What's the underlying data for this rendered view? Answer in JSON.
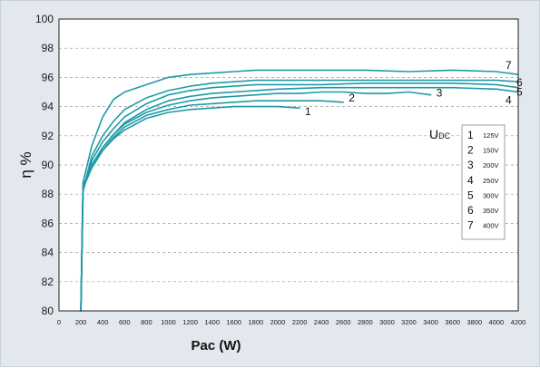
{
  "chart_data": {
    "type": "line",
    "xlabel": "Pac (W)",
    "ylabel": "η %",
    "xlim": [
      0,
      4200
    ],
    "ylim": [
      80,
      100
    ],
    "x_ticks": [
      0,
      200,
      400,
      600,
      800,
      1000,
      1200,
      1400,
      1600,
      1800,
      2000,
      2200,
      2400,
      2600,
      2800,
      3000,
      3200,
      3400,
      3600,
      3800,
      4000,
      4200
    ],
    "y_ticks": [
      80,
      82,
      84,
      86,
      88,
      90,
      92,
      94,
      96,
      98,
      100
    ],
    "grid": "horizontal dashed",
    "line_color": "#1e9aa6",
    "legend": {
      "title_main": "U",
      "title_sub": "DC",
      "position": "right",
      "entries": [
        {
          "id": "1",
          "label": "125V"
        },
        {
          "id": "2",
          "label": "150V"
        },
        {
          "id": "3",
          "label": "200V"
        },
        {
          "id": "4",
          "label": "250V"
        },
        {
          "id": "5",
          "label": "300V"
        },
        {
          "id": "6",
          "label": "350V"
        },
        {
          "id": "7",
          "label": "400V"
        }
      ]
    },
    "series": [
      {
        "name": "1",
        "x": [
          200,
          220,
          300,
          400,
          500,
          600,
          800,
          1000,
          1200,
          1400,
          1600,
          1800,
          2000,
          2200
        ],
        "y": [
          80.0,
          88.6,
          89.8,
          91.0,
          91.8,
          92.4,
          93.2,
          93.6,
          93.8,
          93.9,
          94.0,
          94.0,
          94.0,
          93.9
        ]
      },
      {
        "name": "2",
        "x": [
          200,
          220,
          300,
          400,
          500,
          600,
          800,
          1000,
          1200,
          1400,
          1600,
          1800,
          2000,
          2200,
          2400,
          2600
        ],
        "y": [
          80.0,
          88.4,
          89.8,
          91.0,
          91.9,
          92.6,
          93.4,
          93.8,
          94.1,
          94.2,
          94.3,
          94.4,
          94.4,
          94.4,
          94.4,
          94.3
        ]
      },
      {
        "name": "3",
        "x": [
          200,
          220,
          300,
          400,
          500,
          600,
          800,
          1000,
          1200,
          1400,
          1600,
          1800,
          2000,
          2200,
          2400,
          2600,
          2800,
          3000,
          3200,
          3400
        ],
        "y": [
          80.0,
          88.5,
          90.0,
          91.2,
          92.1,
          92.8,
          93.6,
          94.1,
          94.4,
          94.6,
          94.7,
          94.8,
          94.9,
          94.9,
          95.0,
          95.0,
          94.9,
          94.9,
          95.0,
          94.8
        ]
      },
      {
        "name": "4",
        "x": [
          200,
          220,
          300,
          400,
          500,
          600,
          800,
          1000,
          1200,
          1400,
          1600,
          1800,
          2000,
          2400,
          2800,
          3200,
          3600,
          4000,
          4200
        ],
        "y": [
          80.0,
          88.4,
          90.0,
          91.2,
          92.1,
          92.9,
          93.8,
          94.4,
          94.7,
          94.9,
          95.0,
          95.1,
          95.2,
          95.3,
          95.3,
          95.3,
          95.3,
          95.2,
          95.0
        ]
      },
      {
        "name": "5",
        "x": [
          200,
          220,
          300,
          400,
          500,
          600,
          800,
          1000,
          1200,
          1400,
          1600,
          1800,
          2000,
          2400,
          2800,
          3200,
          3600,
          4000,
          4200
        ],
        "y": [
          80.0,
          88.2,
          90.3,
          91.6,
          92.5,
          93.3,
          94.2,
          94.8,
          95.1,
          95.3,
          95.4,
          95.5,
          95.5,
          95.5,
          95.6,
          95.6,
          95.6,
          95.5,
          95.3
        ]
      },
      {
        "name": "6",
        "x": [
          200,
          220,
          300,
          400,
          500,
          600,
          800,
          1000,
          1200,
          1400,
          1600,
          1800,
          2000,
          2400,
          2800,
          3200,
          3600,
          4000,
          4200
        ],
        "y": [
          80.0,
          88.3,
          90.6,
          92.0,
          93.0,
          93.8,
          94.6,
          95.1,
          95.4,
          95.6,
          95.7,
          95.8,
          95.8,
          95.8,
          95.8,
          95.8,
          95.8,
          95.8,
          95.7
        ]
      },
      {
        "name": "7",
        "x": [
          200,
          220,
          300,
          400,
          500,
          600,
          800,
          1000,
          1200,
          1400,
          1600,
          1800,
          2000,
          2400,
          2800,
          3200,
          3600,
          4000,
          4200
        ],
        "y": [
          80.0,
          88.8,
          91.3,
          93.3,
          94.5,
          95.0,
          95.5,
          96.0,
          96.2,
          96.3,
          96.4,
          96.5,
          96.5,
          96.5,
          96.5,
          96.4,
          96.5,
          96.4,
          96.2
        ]
      }
    ]
  }
}
